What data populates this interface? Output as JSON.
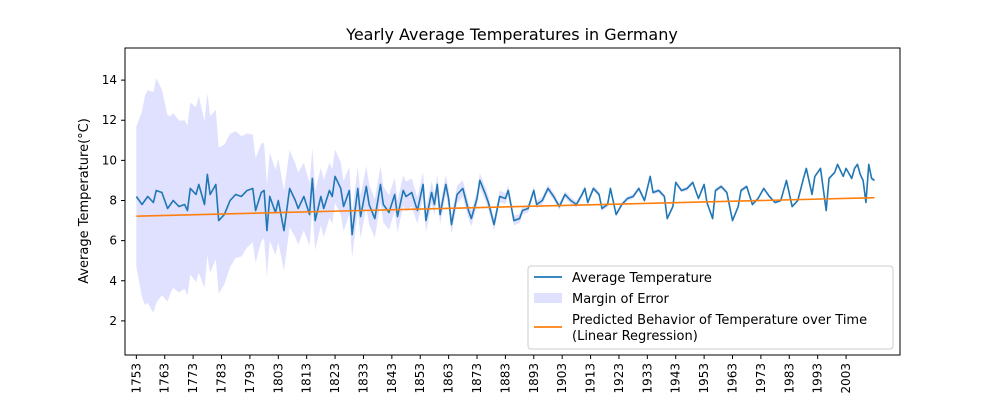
{
  "chart_data": {
    "type": "line",
    "title": "Yearly Average Temperatures in Germany",
    "xlabel": "",
    "ylabel": "Average Temperature(°C)",
    "xlim": [
      1749,
      2022
    ],
    "ylim": [
      0.3,
      15.6
    ],
    "y_ticks": [
      2,
      4,
      6,
      8,
      10,
      12,
      14
    ],
    "x_tick_labels": [
      "1753",
      "1763",
      "1773",
      "1783",
      "1793",
      "1803",
      "1813",
      "1823",
      "1833",
      "1843",
      "1853",
      "1863",
      "1873",
      "1883",
      "1893",
      "1903",
      "1913",
      "1923",
      "1933",
      "1943",
      "1953",
      "1963",
      "1973",
      "1983",
      "1993",
      "2003"
    ],
    "grid": false,
    "legend_position": "lower-right",
    "legend": {
      "avg": "Average Temperature",
      "moe": "Margin of Error",
      "reg_line1": "Predicted Behavior of Temperature over Time",
      "reg_line2": "(Linear Regression)"
    },
    "colors": {
      "avg": "#1f77b4",
      "moe": "#e0e0ff",
      "reg": "#ff7f0e"
    },
    "series": [
      {
        "name": "Average Temperature",
        "x_start": 1753,
        "x_end": 2013,
        "keypoints": [
          [
            1753,
            8.2
          ],
          [
            1755,
            7.8
          ],
          [
            1757,
            8.2
          ],
          [
            1759,
            7.9
          ],
          [
            1760,
            8.5
          ],
          [
            1762,
            8.4
          ],
          [
            1764,
            7.6
          ],
          [
            1766,
            8.0
          ],
          [
            1768,
            7.7
          ],
          [
            1770,
            7.8
          ],
          [
            1771,
            7.5
          ],
          [
            1772,
            8.6
          ],
          [
            1774,
            8.3
          ],
          [
            1775,
            8.8
          ],
          [
            1777,
            7.8
          ],
          [
            1778,
            9.3
          ],
          [
            1779,
            8.3
          ],
          [
            1781,
            8.8
          ],
          [
            1782,
            7.0
          ],
          [
            1784,
            7.3
          ],
          [
            1786,
            8.0
          ],
          [
            1788,
            8.3
          ],
          [
            1790,
            8.2
          ],
          [
            1792,
            8.5
          ],
          [
            1794,
            8.6
          ],
          [
            1795,
            7.5
          ],
          [
            1797,
            8.4
          ],
          [
            1798,
            8.5
          ],
          [
            1799,
            6.5
          ],
          [
            1800,
            8.2
          ],
          [
            1802,
            7.4
          ],
          [
            1803,
            8.0
          ],
          [
            1805,
            6.5
          ],
          [
            1807,
            8.6
          ],
          [
            1809,
            8.0
          ],
          [
            1810,
            7.6
          ],
          [
            1812,
            8.2
          ],
          [
            1814,
            7.3
          ],
          [
            1815,
            9.1
          ],
          [
            1816,
            7.0
          ],
          [
            1818,
            8.2
          ],
          [
            1819,
            7.6
          ],
          [
            1821,
            8.5
          ],
          [
            1822,
            8.2
          ],
          [
            1823,
            9.2
          ],
          [
            1825,
            8.6
          ],
          [
            1826,
            7.7
          ],
          [
            1828,
            8.5
          ],
          [
            1829,
            6.3
          ],
          [
            1831,
            8.6
          ],
          [
            1832,
            7.2
          ],
          [
            1834,
            8.7
          ],
          [
            1835,
            7.8
          ],
          [
            1837,
            7.1
          ],
          [
            1839,
            8.8
          ],
          [
            1840,
            7.8
          ],
          [
            1842,
            7.4
          ],
          [
            1844,
            8.3
          ],
          [
            1845,
            7.2
          ],
          [
            1847,
            8.5
          ],
          [
            1848,
            8.2
          ],
          [
            1850,
            8.4
          ],
          [
            1852,
            7.5
          ],
          [
            1854,
            8.8
          ],
          [
            1855,
            7.0
          ],
          [
            1857,
            8.4
          ],
          [
            1858,
            7.8
          ],
          [
            1859,
            8.8
          ],
          [
            1860,
            7.3
          ],
          [
            1862,
            8.8
          ],
          [
            1863,
            8.1
          ],
          [
            1864,
            6.8
          ],
          [
            1866,
            8.3
          ],
          [
            1868,
            8.6
          ],
          [
            1870,
            7.5
          ],
          [
            1871,
            7.1
          ],
          [
            1873,
            8.1
          ],
          [
            1874,
            9.0
          ],
          [
            1876,
            8.3
          ],
          [
            1877,
            7.9
          ],
          [
            1879,
            6.8
          ],
          [
            1881,
            8.2
          ],
          [
            1883,
            8.1
          ],
          [
            1884,
            8.5
          ],
          [
            1886,
            7.0
          ],
          [
            1888,
            7.1
          ],
          [
            1889,
            7.5
          ],
          [
            1891,
            7.6
          ],
          [
            1893,
            8.5
          ],
          [
            1894,
            7.8
          ],
          [
            1896,
            8.0
          ],
          [
            1898,
            8.6
          ],
          [
            1900,
            8.2
          ],
          [
            1902,
            7.7
          ],
          [
            1904,
            8.3
          ],
          [
            1906,
            8.0
          ],
          [
            1908,
            7.8
          ],
          [
            1910,
            8.3
          ],
          [
            1911,
            8.6
          ],
          [
            1912,
            7.9
          ],
          [
            1914,
            8.6
          ],
          [
            1916,
            8.3
          ],
          [
            1917,
            7.6
          ],
          [
            1919,
            7.8
          ],
          [
            1920,
            8.6
          ],
          [
            1922,
            7.3
          ],
          [
            1924,
            7.8
          ],
          [
            1926,
            8.1
          ],
          [
            1928,
            8.2
          ],
          [
            1930,
            8.6
          ],
          [
            1932,
            8.0
          ],
          [
            1934,
            9.2
          ],
          [
            1935,
            8.4
          ],
          [
            1937,
            8.5
          ],
          [
            1939,
            8.2
          ],
          [
            1940,
            7.1
          ],
          [
            1942,
            7.7
          ],
          [
            1943,
            8.9
          ],
          [
            1945,
            8.5
          ],
          [
            1947,
            8.6
          ],
          [
            1949,
            8.9
          ],
          [
            1951,
            8.1
          ],
          [
            1953,
            8.8
          ],
          [
            1954,
            7.9
          ],
          [
            1956,
            7.1
          ],
          [
            1957,
            8.5
          ],
          [
            1959,
            8.7
          ],
          [
            1961,
            8.4
          ],
          [
            1963,
            7.0
          ],
          [
            1965,
            7.7
          ],
          [
            1966,
            8.5
          ],
          [
            1968,
            8.7
          ],
          [
            1970,
            7.8
          ],
          [
            1972,
            8.1
          ],
          [
            1974,
            8.6
          ],
          [
            1976,
            8.2
          ],
          [
            1978,
            7.9
          ],
          [
            1980,
            8.0
          ],
          [
            1982,
            9.0
          ],
          [
            1984,
            7.7
          ],
          [
            1986,
            8.0
          ],
          [
            1988,
            9.1
          ],
          [
            1989,
            9.6
          ],
          [
            1991,
            8.3
          ],
          [
            1992,
            9.2
          ],
          [
            1994,
            9.6
          ],
          [
            1996,
            7.5
          ],
          [
            1997,
            9.1
          ],
          [
            1999,
            9.4
          ],
          [
            2000,
            9.8
          ],
          [
            2002,
            9.2
          ],
          [
            2003,
            9.6
          ],
          [
            2005,
            9.1
          ],
          [
            2006,
            9.6
          ],
          [
            2007,
            9.8
          ],
          [
            2008,
            9.3
          ],
          [
            2009,
            9.0
          ],
          [
            2010,
            7.9
          ],
          [
            2011,
            9.8
          ],
          [
            2012,
            9.1
          ],
          [
            2013,
            9.0
          ]
        ]
      },
      {
        "name": "Margin of Error",
        "x_start": 1753,
        "x_end": 2013,
        "uncertainty_keypoints": [
          [
            1753,
            3.5
          ],
          [
            1756,
            5.2
          ],
          [
            1760,
            5.6
          ],
          [
            1765,
            4.4
          ],
          [
            1770,
            4.2
          ],
          [
            1775,
            4.4
          ],
          [
            1780,
            3.8
          ],
          [
            1785,
            3.4
          ],
          [
            1790,
            3.0
          ],
          [
            1795,
            2.6
          ],
          [
            1800,
            2.2
          ],
          [
            1805,
            2.0
          ],
          [
            1810,
            1.8
          ],
          [
            1815,
            1.5
          ],
          [
            1820,
            1.4
          ],
          [
            1825,
            1.3
          ],
          [
            1830,
            1.1
          ],
          [
            1835,
            1.0
          ],
          [
            1840,
            0.9
          ],
          [
            1845,
            0.8
          ],
          [
            1850,
            0.7
          ],
          [
            1855,
            0.6
          ],
          [
            1860,
            0.5
          ],
          [
            1865,
            0.45
          ],
          [
            1870,
            0.4
          ],
          [
            1875,
            0.35
          ],
          [
            1880,
            0.3
          ],
          [
            1885,
            0.25
          ],
          [
            1890,
            0.2
          ],
          [
            1895,
            0.2
          ],
          [
            1900,
            0.18
          ],
          [
            1910,
            0.15
          ],
          [
            1920,
            0.12
          ],
          [
            1930,
            0.12
          ],
          [
            1940,
            0.1
          ],
          [
            1950,
            0.1
          ],
          [
            1960,
            0.1
          ],
          [
            1970,
            0.09
          ],
          [
            1980,
            0.08
          ],
          [
            1990,
            0.07
          ],
          [
            2000,
            0.07
          ],
          [
            2013,
            0.07
          ]
        ]
      },
      {
        "name": "Predicted Behavior of Temperature over Time (Linear Regression)",
        "x": [
          1753,
          2013
        ],
        "y": [
          7.22,
          8.14
        ]
      }
    ]
  }
}
